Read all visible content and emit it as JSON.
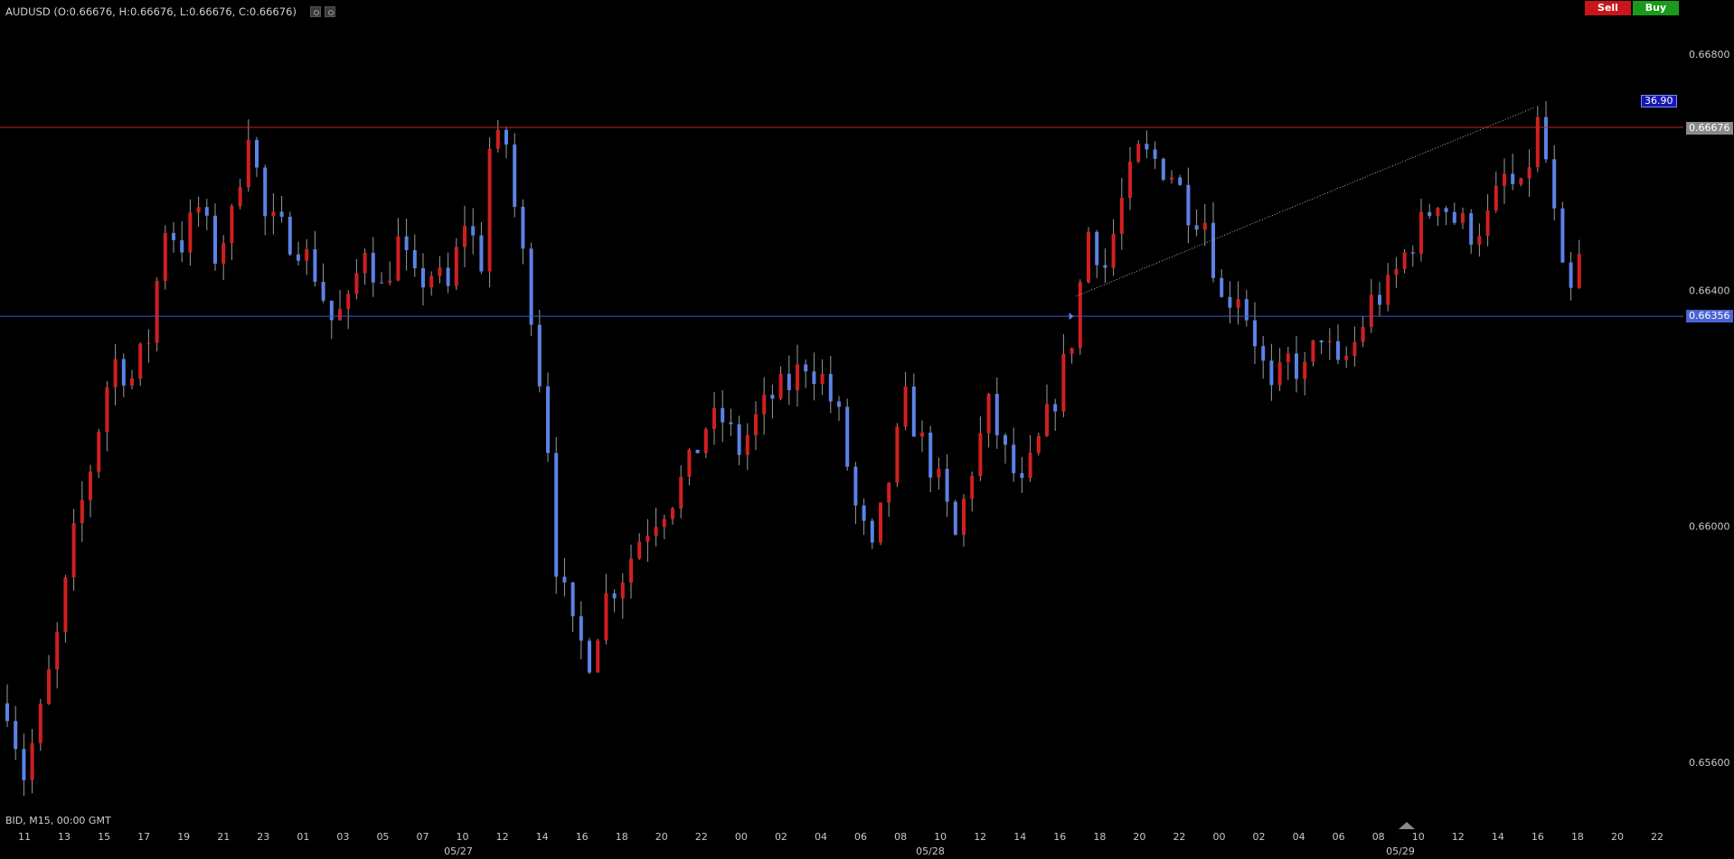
{
  "header": {
    "title": "AUDUSD (O:0.66676, H:0.66676, L:0.66676, C:0.66676)",
    "icons": [
      "settings-icon",
      "eye-icon"
    ]
  },
  "trade": {
    "sell_label": "Sell",
    "buy_label": "Buy"
  },
  "colors": {
    "background": "#000000",
    "up_candle": "#d11f1f",
    "down_candle": "#5b82e6",
    "resistance_line": "#c0262c",
    "support_line": "#3b59c9",
    "current_price_tag": "#8a8a8a",
    "support_tag": "#4a64d4"
  },
  "footer": {
    "info": "BID, M15, 00:00 GMT"
  },
  "chart_data": {
    "type": "candlestick",
    "symbol": "AUDUSD",
    "timeframe": "M15",
    "ylim": [
      0.6549,
      0.6683
    ],
    "y_ticks": [
      "0.66800",
      "0.66400",
      "0.66000",
      "0.65600"
    ],
    "y_tick_values": [
      0.668,
      0.664,
      0.66,
      0.656
    ],
    "x_ticks": [
      "11",
      "13",
      "15",
      "17",
      "19",
      "21",
      "23",
      "01",
      "03",
      "05",
      "07",
      "10",
      "12",
      "14",
      "16",
      "18",
      "20",
      "22",
      "00",
      "02",
      "04",
      "06",
      "08",
      "10",
      "12",
      "14",
      "16",
      "18",
      "20",
      "22",
      "00",
      "02",
      "04",
      "06",
      "08",
      "10",
      "12",
      "14",
      "16",
      "18",
      "20",
      "22"
    ],
    "x_date_labels": [
      "05/27",
      "05/28",
      "05/29"
    ],
    "price_lines": [
      {
        "name": "current-price",
        "value": 0.66676,
        "label": "0.66676"
      },
      {
        "name": "support-level",
        "value": 0.66356,
        "label": "0.66356"
      }
    ],
    "trendline": {
      "label": "36.90",
      "from": 0.6639,
      "to": 0.6671
    },
    "close_path": [
      [
        0,
        0.657
      ],
      [
        2,
        0.6558
      ],
      [
        4,
        0.6568
      ],
      [
        6,
        0.6581
      ],
      [
        8,
        0.6598
      ],
      [
        10,
        0.661
      ],
      [
        12,
        0.6624
      ],
      [
        13,
        0.6628
      ],
      [
        15,
        0.6625
      ],
      [
        17,
        0.6632
      ],
      [
        19,
        0.6651
      ],
      [
        21,
        0.6648
      ],
      [
        23,
        0.6654
      ],
      [
        25,
        0.6646
      ],
      [
        27,
        0.6652
      ],
      [
        29,
        0.6668
      ],
      [
        31,
        0.6652
      ],
      [
        33,
        0.665
      ],
      [
        35,
        0.6648
      ],
      [
        37,
        0.6643
      ],
      [
        39,
        0.6635
      ],
      [
        41,
        0.6637
      ],
      [
        43,
        0.6648
      ],
      [
        45,
        0.664
      ],
      [
        47,
        0.6648
      ],
      [
        49,
        0.6641
      ],
      [
        51,
        0.6643
      ],
      [
        53,
        0.664
      ],
      [
        55,
        0.6652
      ],
      [
        57,
        0.6645
      ],
      [
        58,
        0.6664
      ],
      [
        60,
        0.6665
      ],
      [
        61,
        0.6654
      ],
      [
        63,
        0.6637
      ],
      [
        65,
        0.6614
      ],
      [
        66,
        0.6594
      ],
      [
        68,
        0.6582
      ],
      [
        70,
        0.6578
      ],
      [
        72,
        0.6588
      ],
      [
        74,
        0.6592
      ],
      [
        76,
        0.6598
      ],
      [
        78,
        0.6602
      ],
      [
        80,
        0.6605
      ],
      [
        82,
        0.661
      ],
      [
        84,
        0.6617
      ],
      [
        86,
        0.6618
      ],
      [
        88,
        0.6613
      ],
      [
        90,
        0.6618
      ],
      [
        92,
        0.6622
      ],
      [
        94,
        0.6624
      ],
      [
        96,
        0.6628
      ],
      [
        98,
        0.6625
      ],
      [
        100,
        0.6618
      ],
      [
        102,
        0.6603
      ],
      [
        104,
        0.6595
      ],
      [
        106,
        0.6608
      ],
      [
        108,
        0.6621
      ],
      [
        110,
        0.6614
      ],
      [
        112,
        0.6607
      ],
      [
        114,
        0.6598
      ],
      [
        116,
        0.661
      ],
      [
        118,
        0.662
      ],
      [
        120,
        0.6612
      ],
      [
        122,
        0.6606
      ],
      [
        124,
        0.6614
      ],
      [
        126,
        0.6622
      ],
      [
        128,
        0.6632
      ],
      [
        130,
        0.665
      ],
      [
        132,
        0.6644
      ],
      [
        134,
        0.6655
      ],
      [
        136,
        0.6663
      ],
      [
        138,
        0.6662
      ],
      [
        140,
        0.666
      ],
      [
        142,
        0.6654
      ],
      [
        144,
        0.6652
      ],
      [
        146,
        0.6638
      ],
      [
        148,
        0.664
      ],
      [
        150,
        0.6632
      ],
      [
        152,
        0.6622
      ],
      [
        154,
        0.6628
      ],
      [
        156,
        0.6626
      ],
      [
        158,
        0.6633
      ],
      [
        160,
        0.6626
      ],
      [
        162,
        0.6631
      ],
      [
        164,
        0.6638
      ],
      [
        166,
        0.664
      ],
      [
        168,
        0.6646
      ],
      [
        170,
        0.6651
      ],
      [
        172,
        0.6656
      ],
      [
        174,
        0.6652
      ],
      [
        176,
        0.665
      ],
      [
        178,
        0.6652
      ],
      [
        180,
        0.6659
      ],
      [
        182,
        0.6656
      ],
      [
        184,
        0.6668
      ],
      [
        185,
        0.6662
      ],
      [
        186,
        0.6652
      ],
      [
        187,
        0.6642
      ],
      [
        188,
        0.6639
      ],
      [
        189,
        0.6645
      ]
    ]
  }
}
